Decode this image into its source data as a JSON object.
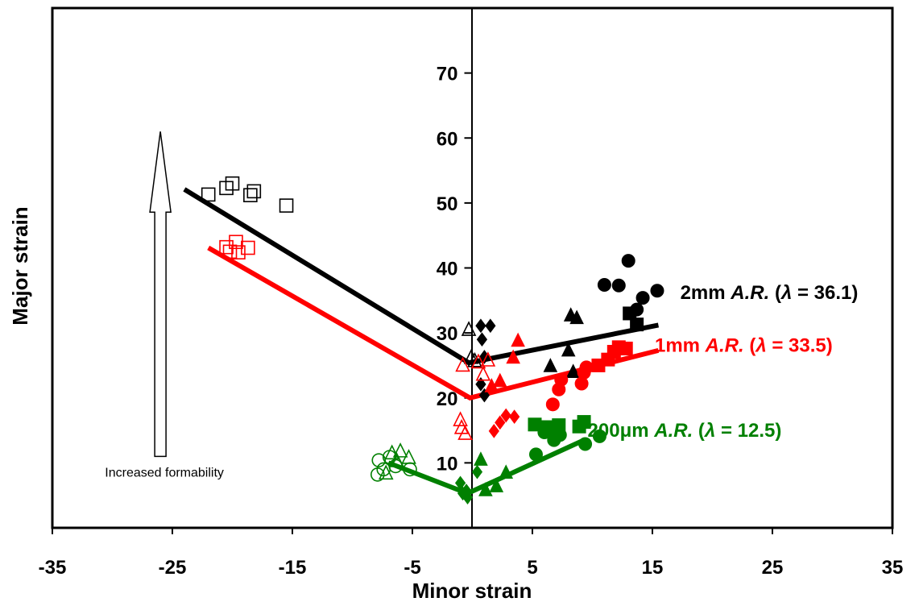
{
  "colors": {
    "black": "#000000",
    "red": "#ff0000",
    "green": "#008000"
  },
  "chart_data": {
    "type": "scatter",
    "title": "",
    "xlabel": "Minor strain",
    "ylabel": "Major strain",
    "xlim": [
      -35,
      35
    ],
    "ylim": [
      0,
      80
    ],
    "x_ticks": [
      "-35",
      "-25",
      "-15",
      "-5",
      "5",
      "15",
      "25",
      "35"
    ],
    "y_ticks": [
      "10",
      "20",
      "30",
      "40",
      "50",
      "60",
      "70"
    ],
    "grid": false,
    "annotation": {
      "text": "Increased formability",
      "arrow_x": -26,
      "arrow_y_from": 11,
      "arrow_y_to": 61
    },
    "series": [
      {
        "label_prefix": "2mm ",
        "label_italic": "A.R.",
        "label_paren_open": " (",
        "label_lambda": "λ",
        "label_suffix": " = 36.1)",
        "color": "#000000",
        "flc": [
          [
            -24,
            52.1
          ],
          [
            -0.3,
            25.4
          ],
          [
            15.5,
            31.2
          ]
        ],
        "points": [
          {
            "marker": "square-open",
            "x": -22,
            "y": 51.3
          },
          {
            "marker": "square-open",
            "x": -20.5,
            "y": 52.3
          },
          {
            "marker": "square-open",
            "x": -20,
            "y": 53.0
          },
          {
            "marker": "square-open",
            "x": -18.5,
            "y": 51.2
          },
          {
            "marker": "square-open",
            "x": -18.2,
            "y": 51.8
          },
          {
            "marker": "square-open",
            "x": -15.5,
            "y": 49.6
          },
          {
            "marker": "triangle-open",
            "x": -0.3,
            "y": 30.5
          },
          {
            "marker": "triangle-open",
            "x": -0.1,
            "y": 26.2
          },
          {
            "marker": "triangle-open",
            "x": 0.2,
            "y": 25.7
          },
          {
            "marker": "diamond",
            "x": 0.7,
            "y": 31.1
          },
          {
            "marker": "diamond",
            "x": 0.8,
            "y": 29.0
          },
          {
            "marker": "diamond",
            "x": 1.0,
            "y": 26.3
          },
          {
            "marker": "diamond",
            "x": 1.5,
            "y": 31.1
          },
          {
            "marker": "diamond",
            "x": 0.7,
            "y": 22.1
          },
          {
            "marker": "diamond",
            "x": 1.0,
            "y": 20.4
          },
          {
            "marker": "triangle",
            "x": 6.5,
            "y": 24.9
          },
          {
            "marker": "triangle",
            "x": 8.0,
            "y": 27.3
          },
          {
            "marker": "triangle",
            "x": 8.2,
            "y": 32.7
          },
          {
            "marker": "triangle",
            "x": 8.7,
            "y": 32.3
          },
          {
            "marker": "triangle",
            "x": 8.4,
            "y": 24.0
          },
          {
            "marker": "circle",
            "x": 11.0,
            "y": 37.4
          },
          {
            "marker": "circle",
            "x": 12.2,
            "y": 37.3
          },
          {
            "marker": "circle",
            "x": 13.0,
            "y": 41.1
          },
          {
            "marker": "circle",
            "x": 13.7,
            "y": 33.6
          },
          {
            "marker": "circle",
            "x": 14.2,
            "y": 35.4
          },
          {
            "marker": "circle",
            "x": 15.4,
            "y": 36.5
          },
          {
            "marker": "square",
            "x": 13.1,
            "y": 33.0
          },
          {
            "marker": "square",
            "x": 13.7,
            "y": 31.3
          }
        ]
      },
      {
        "label_prefix": "1mm ",
        "label_italic": "A.R.",
        "label_paren_open": " (",
        "label_lambda": "λ",
        "label_suffix": " = 33.5)",
        "color": "#ff0000",
        "flc": [
          [
            -22,
            43.1
          ],
          [
            -0.2,
            20.0
          ],
          [
            15.5,
            27.3
          ]
        ],
        "points": [
          {
            "marker": "square-open",
            "x": -20.5,
            "y": 43.2
          },
          {
            "marker": "square-open",
            "x": -20.2,
            "y": 42.5
          },
          {
            "marker": "square-open",
            "x": -19.7,
            "y": 44.0
          },
          {
            "marker": "square-open",
            "x": -19.5,
            "y": 42.4
          },
          {
            "marker": "square-open",
            "x": -18.7,
            "y": 43.1
          },
          {
            "marker": "triangle-open",
            "x": -0.8,
            "y": 25.0
          },
          {
            "marker": "triangle-open",
            "x": -1.0,
            "y": 16.6
          },
          {
            "marker": "triangle-open",
            "x": -0.9,
            "y": 15.4
          },
          {
            "marker": "triangle-open",
            "x": -0.6,
            "y": 14.5
          },
          {
            "marker": "triangle-open",
            "x": 0.5,
            "y": 25.5
          },
          {
            "marker": "triangle-open",
            "x": 0.9,
            "y": 23.6
          },
          {
            "marker": "triangle-open",
            "x": 1.3,
            "y": 25.8
          },
          {
            "marker": "triangle",
            "x": 1.6,
            "y": 21.8
          },
          {
            "marker": "triangle",
            "x": 2.3,
            "y": 22.6
          },
          {
            "marker": "triangle",
            "x": 3.4,
            "y": 26.2
          },
          {
            "marker": "triangle",
            "x": 3.8,
            "y": 28.8
          },
          {
            "marker": "diamond",
            "x": 1.8,
            "y": 14.9
          },
          {
            "marker": "diamond",
            "x": 2.3,
            "y": 16.2
          },
          {
            "marker": "diamond",
            "x": 2.8,
            "y": 17.3
          },
          {
            "marker": "diamond",
            "x": 3.5,
            "y": 17.1
          },
          {
            "marker": "circle",
            "x": 6.7,
            "y": 19.0
          },
          {
            "marker": "circle",
            "x": 7.2,
            "y": 21.3
          },
          {
            "marker": "circle",
            "x": 7.4,
            "y": 22.8
          },
          {
            "marker": "circle",
            "x": 9.1,
            "y": 22.2
          },
          {
            "marker": "circle",
            "x": 9.3,
            "y": 23.9
          },
          {
            "marker": "circle",
            "x": 9.5,
            "y": 24.7
          },
          {
            "marker": "square",
            "x": 10.5,
            "y": 25.0
          },
          {
            "marker": "square",
            "x": 11.3,
            "y": 25.9
          },
          {
            "marker": "square",
            "x": 11.8,
            "y": 27.1
          },
          {
            "marker": "square",
            "x": 12.2,
            "y": 27.8
          },
          {
            "marker": "square",
            "x": 12.8,
            "y": 27.6
          }
        ]
      },
      {
        "label_prefix": "200μm ",
        "label_italic": "A.R.",
        "label_paren_open": " (",
        "label_lambda": "λ",
        "label_suffix": " = 12.5)",
        "color": "#008000",
        "flc": [
          [
            -7,
            10.0
          ],
          [
            -0.4,
            5.3
          ],
          [
            9.3,
            13.5
          ]
        ],
        "points": [
          {
            "marker": "circle-open",
            "x": -7.8,
            "y": 10.4
          },
          {
            "marker": "circle-open",
            "x": -7.9,
            "y": 8.2
          },
          {
            "marker": "circle-open",
            "x": -7.4,
            "y": 9.0
          },
          {
            "marker": "circle-open",
            "x": -6.9,
            "y": 10.9
          },
          {
            "marker": "circle-open",
            "x": -6.4,
            "y": 9.5
          },
          {
            "marker": "circle-open",
            "x": -5.2,
            "y": 9.0
          },
          {
            "marker": "triangle-open",
            "x": -7.2,
            "y": 8.4
          },
          {
            "marker": "triangle-open",
            "x": -6.7,
            "y": 11.5
          },
          {
            "marker": "triangle-open",
            "x": -6.0,
            "y": 11.8
          },
          {
            "marker": "triangle-open",
            "x": -5.3,
            "y": 10.8
          },
          {
            "marker": "triangle-open",
            "x": -6.3,
            "y": 10.3
          },
          {
            "marker": "diamond",
            "x": -1.0,
            "y": 6.9
          },
          {
            "marker": "diamond",
            "x": -0.8,
            "y": 5.3
          },
          {
            "marker": "diamond",
            "x": -0.5,
            "y": 5.7
          },
          {
            "marker": "diamond",
            "x": -0.4,
            "y": 4.7
          },
          {
            "marker": "diamond",
            "x": 0.4,
            "y": 8.6
          },
          {
            "marker": "triangle",
            "x": 0.7,
            "y": 10.5
          },
          {
            "marker": "triangle",
            "x": 1.1,
            "y": 5.8
          },
          {
            "marker": "triangle",
            "x": 2.0,
            "y": 6.4
          },
          {
            "marker": "triangle",
            "x": 2.8,
            "y": 8.5
          },
          {
            "marker": "circle",
            "x": 5.3,
            "y": 11.3
          },
          {
            "marker": "circle",
            "x": 6.0,
            "y": 14.7
          },
          {
            "marker": "circle",
            "x": 6.8,
            "y": 13.5
          },
          {
            "marker": "circle",
            "x": 7.3,
            "y": 14.3
          },
          {
            "marker": "circle",
            "x": 9.4,
            "y": 12.9
          },
          {
            "marker": "circle",
            "x": 10.6,
            "y": 14.1
          },
          {
            "marker": "square",
            "x": 5.2,
            "y": 15.9
          },
          {
            "marker": "square",
            "x": 6.3,
            "y": 15.5
          },
          {
            "marker": "square",
            "x": 7.2,
            "y": 15.8
          },
          {
            "marker": "square",
            "x": 8.9,
            "y": 15.6
          },
          {
            "marker": "square",
            "x": 9.3,
            "y": 16.3
          }
        ]
      }
    ]
  }
}
